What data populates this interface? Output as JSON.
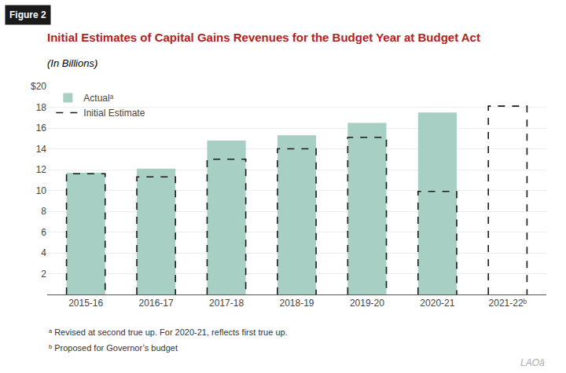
{
  "chart_data": {
    "type": "bar",
    "title": "Initial Estimates of Capital Gains Revenues for the Budget Year at Budget Act",
    "subtitle": "(In Billions)",
    "categories": [
      "2015-16",
      "2016-17",
      "2017-18",
      "2018-19",
      "2019-20",
      "2020-21",
      "2021-22ᵇ"
    ],
    "series": [
      {
        "name": "Actualᵃ",
        "color": "#a8cfc4",
        "values": [
          11.7,
          12.1,
          14.8,
          15.3,
          16.5,
          17.5,
          null
        ]
      },
      {
        "name": "Initial Estimate",
        "color": "#1a1a1a",
        "line_style": "dashed",
        "values": [
          11.6,
          11.3,
          13.0,
          14.0,
          15.1,
          9.9,
          18.1
        ]
      }
    ],
    "ylim": [
      0,
      20
    ],
    "yticks": [
      2,
      4,
      6,
      8,
      10,
      12,
      14,
      16,
      18,
      {
        "value": 20,
        "label": "$20"
      }
    ],
    "grid": true,
    "legend": "upper left",
    "annotations": [
      "Figure 2",
      "ᵃ Revised at second true up. For 2020-21, reflects first true up.",
      "ᵇ Proposed for Governor’s budget",
      "LAOâ"
    ]
  }
}
